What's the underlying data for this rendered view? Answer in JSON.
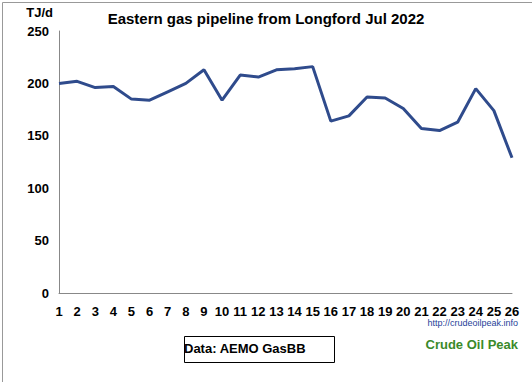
{
  "chart_data": {
    "type": "line",
    "title": "Eastern gas pipeline from Longford Jul 2022",
    "y_label": "TJ/d",
    "categories": [
      "1",
      "2",
      "3",
      "4",
      "5",
      "6",
      "7",
      "8",
      "9",
      "10",
      "11",
      "12",
      "13",
      "14",
      "15",
      "16",
      "17",
      "18",
      "19",
      "20",
      "21",
      "22",
      "23",
      "24",
      "25",
      "26"
    ],
    "values": [
      200,
      202,
      196,
      197,
      185,
      184,
      192,
      200,
      213,
      184,
      208,
      206,
      213,
      214,
      216,
      164,
      169,
      187,
      186,
      176,
      157,
      155,
      163,
      195,
      174,
      129
    ],
    "color": "#2f4b8c",
    "ylim": [
      0,
      250
    ],
    "yticks": [
      0,
      50,
      100,
      150,
      200,
      250
    ],
    "grid": false,
    "annotations": [
      "Data: AEMO GasBB",
      "http://crudeoilpeak.info",
      "Crude Oil Peak"
    ]
  }
}
